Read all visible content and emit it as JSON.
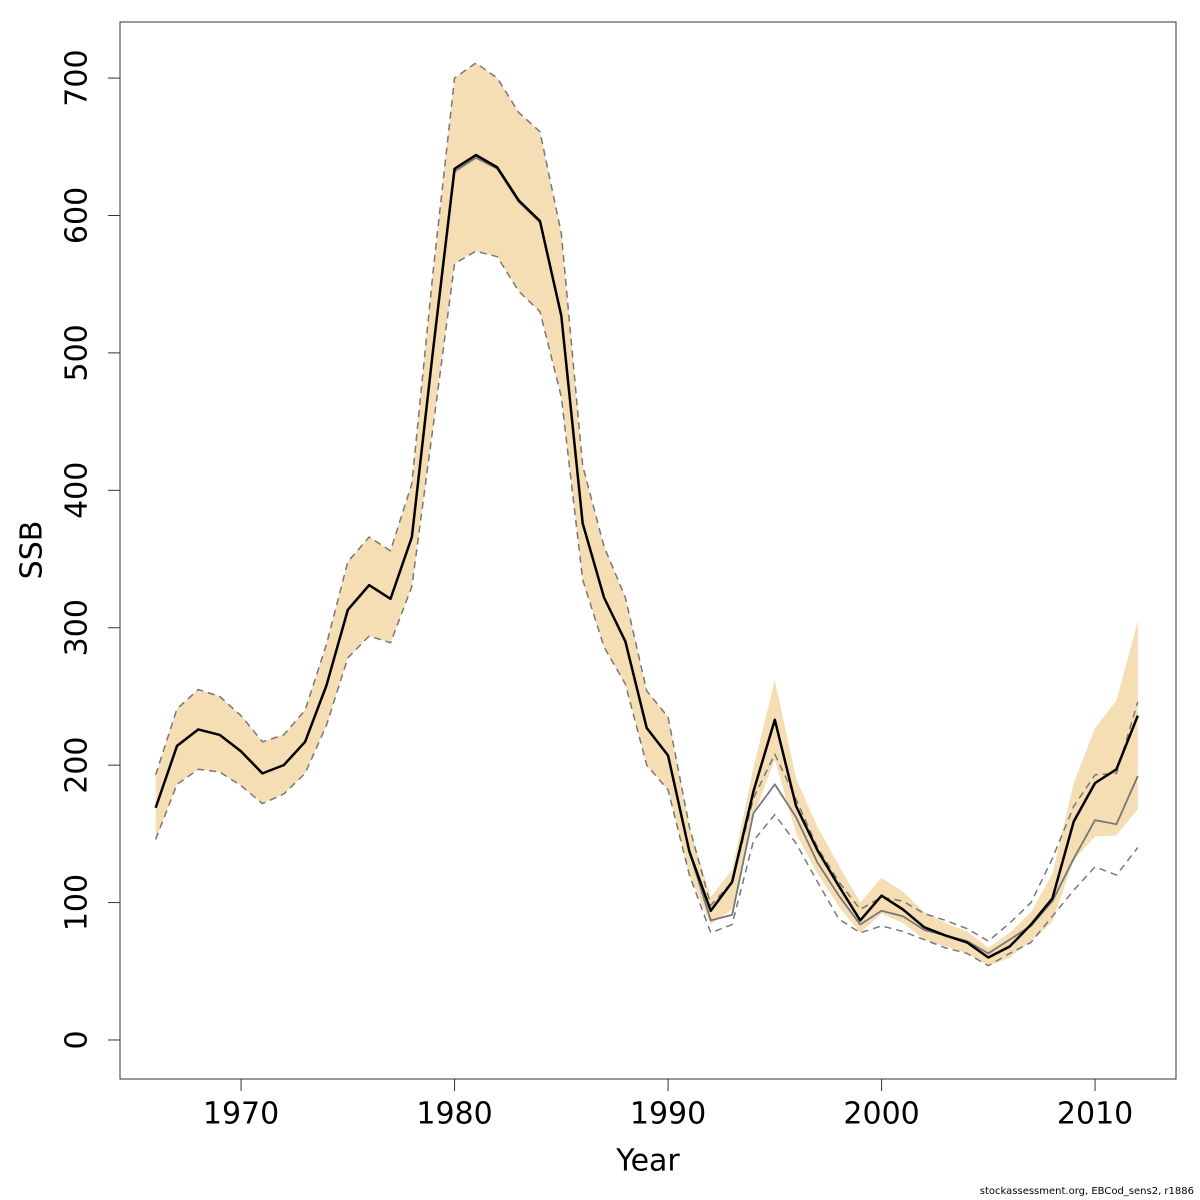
{
  "chart_data": {
    "type": "line",
    "x_label": "Year",
    "y_label": "SSB",
    "footer": "stockassessment.org, EBCod_sens2, r1886",
    "x": [
      1966,
      1967,
      1968,
      1969,
      1970,
      1971,
      1972,
      1973,
      1974,
      1975,
      1976,
      1977,
      1978,
      1979,
      1980,
      1981,
      1982,
      1983,
      1984,
      1985,
      1986,
      1987,
      1988,
      1989,
      1990,
      1991,
      1992,
      1993,
      1994,
      1995,
      1996,
      1997,
      1998,
      1999,
      2000,
      2001,
      2002,
      2003,
      2004,
      2005,
      2006,
      2007,
      2008,
      2009,
      2010,
      2011,
      2012
    ],
    "band": {
      "color": "#f5deb3",
      "upper": [
        193,
        241,
        255,
        250,
        236,
        217,
        222,
        240,
        288,
        348,
        366,
        356,
        405,
        560,
        700,
        711,
        700,
        675,
        661,
        587,
        418,
        359,
        322,
        254,
        235,
        155,
        104,
        124,
        198,
        262,
        190,
        155,
        127,
        100,
        118,
        108,
        93,
        85,
        79,
        67,
        78,
        93,
        121,
        187,
        227,
        247,
        305
      ],
      "lower": [
        146,
        186,
        197,
        195,
        185,
        172,
        179,
        194,
        229,
        278,
        294,
        289,
        330,
        447,
        565,
        574,
        570,
        545,
        530,
        468,
        335,
        286,
        259,
        200,
        182,
        120,
        84,
        95,
        163,
        204,
        150,
        121,
        97,
        78,
        92,
        85,
        73,
        68,
        63,
        54,
        60,
        72,
        86,
        131,
        148,
        149,
        168
      ]
    },
    "series": [
      {
        "color": "#777777",
        "dashed": true,
        "width": 1.5,
        "values": [
          193,
          241,
          255,
          250,
          236,
          217,
          222,
          240,
          288,
          348,
          366,
          356,
          405,
          560,
          700,
          711,
          700,
          675,
          661,
          587,
          418,
          359,
          322,
          254,
          235,
          155,
          98,
          115,
          176,
          208,
          175,
          140,
          115,
          95,
          104,
          101,
          92,
          87,
          81,
          72,
          85,
          100,
          132,
          170,
          193,
          194,
          246
        ]
      },
      {
        "color": "#777777",
        "dashed": true,
        "width": 1.5,
        "values": [
          146,
          186,
          197,
          195,
          185,
          172,
          179,
          194,
          229,
          278,
          294,
          289,
          330,
          447,
          565,
          574,
          570,
          545,
          530,
          468,
          335,
          286,
          259,
          200,
          182,
          120,
          78,
          84,
          145,
          164,
          143,
          115,
          88,
          78,
          83,
          79,
          73,
          67,
          63,
          54,
          63,
          71,
          90,
          109,
          126,
          120,
          140
        ]
      },
      {
        "color": "#777777",
        "dashed": false,
        "width": 1.8,
        "values": [
          169,
          214,
          226,
          222,
          210,
          194,
          200,
          217,
          258,
          313,
          331,
          321,
          366,
          503,
          632,
          642,
          634,
          610,
          595,
          527,
          376,
          322,
          290,
          227,
          207,
          137,
          87,
          91,
          165,
          186,
          162,
          129,
          105,
          84,
          94,
          90,
          80,
          76,
          72,
          63,
          73,
          83,
          101,
          132,
          160,
          157,
          192
        ]
      },
      {
        "color": "#000000",
        "dashed": false,
        "width": 2.5,
        "values": [
          169,
          214,
          226,
          222,
          210,
          194,
          200,
          217,
          258,
          313,
          331,
          321,
          366,
          503,
          634,
          644,
          635,
          611,
          596,
          527,
          376,
          322,
          290,
          227,
          207,
          137,
          94,
          115,
          181,
          233,
          170,
          138,
          112,
          87,
          105,
          95,
          82,
          76,
          71,
          60,
          68,
          84,
          103,
          159,
          187,
          197,
          236
        ]
      }
    ],
    "xlim": [
      1964.33,
      2013.79
    ],
    "ylim": [
      -28.4,
      740.8
    ],
    "xticks": [
      1970,
      1980,
      1990,
      2000,
      2010
    ],
    "yticks": [
      0,
      100,
      200,
      300,
      400,
      500,
      600,
      700
    ]
  }
}
